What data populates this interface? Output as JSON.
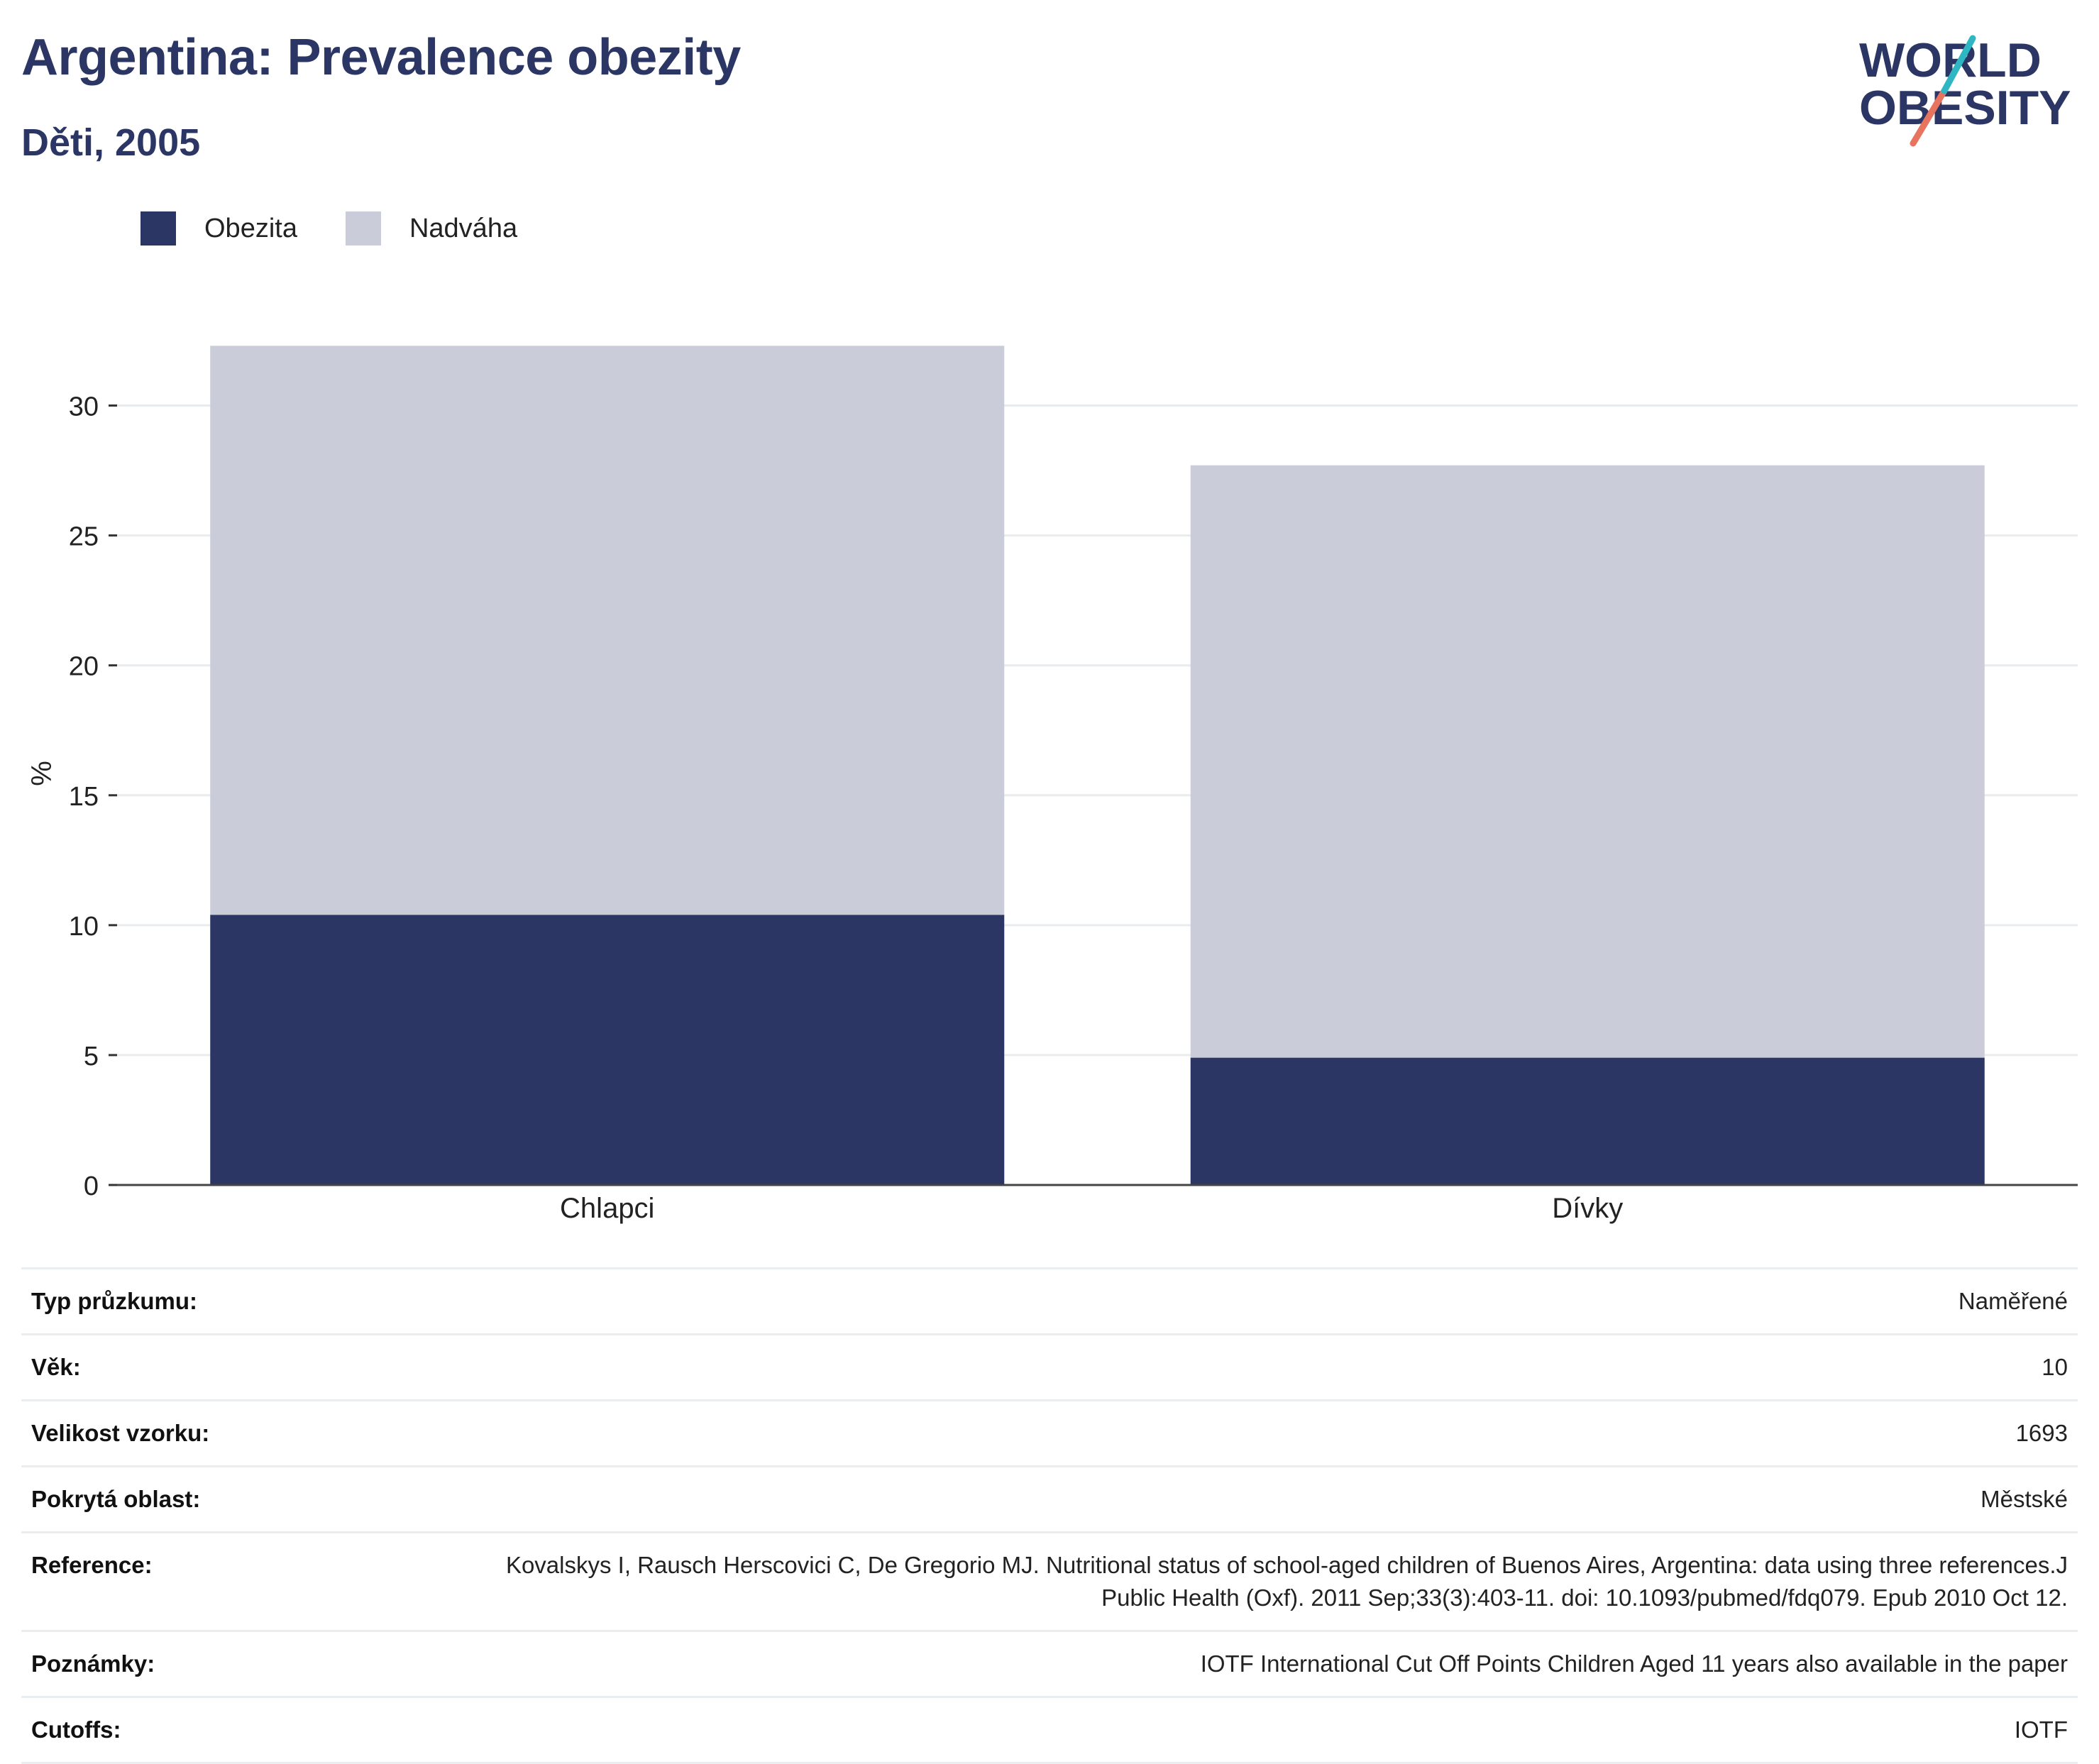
{
  "title": "Argentina: Prevalence obezity",
  "subtitle": "Děti, 2005",
  "logo": {
    "line1": "WORLD",
    "line2": "OBESITY"
  },
  "legend": [
    {
      "label": "Obezita",
      "color": "#2b3664"
    },
    {
      "label": "Nadváha",
      "color": "#cacdd9"
    }
  ],
  "chart_data": {
    "type": "bar",
    "stacked": true,
    "categories": [
      "Chlapci",
      "Dívky"
    ],
    "series": [
      {
        "name": "Obezita",
        "values": [
          10.4,
          4.9
        ],
        "color": "#2b3664"
      },
      {
        "name": "Nadváha",
        "values": [
          21.9,
          22.8
        ],
        "color": "#cacdd9"
      }
    ],
    "ylabel": "%",
    "xlabel": "",
    "ylim": [
      0,
      32.5
    ],
    "yticks": [
      0,
      5,
      10,
      15,
      20,
      25,
      30
    ],
    "grid": true,
    "legend_position": "top-left"
  },
  "info": [
    {
      "label": "Typ průzkumu:",
      "value": "Naměřené"
    },
    {
      "label": "Věk:",
      "value": "10"
    },
    {
      "label": "Velikost vzorku:",
      "value": "1693"
    },
    {
      "label": "Pokrytá oblast:",
      "value": "Městské"
    },
    {
      "label": "Reference:",
      "value": "Kovalskys I, Rausch Herscovici C, De Gregorio MJ. Nutritional status of school-aged children of Buenos Aires, Argentina: data using three references.J Public Health (Oxf). 2011 Sep;33(3):403-11. doi: 10.1093/pubmed/fdq079. Epub 2010 Oct 12."
    },
    {
      "label": "Poznámky:",
      "value": "IOTF International Cut Off Points Children Aged 11 years also available in the paper"
    },
    {
      "label": "Cutoffs:",
      "value": "IOTF"
    }
  ]
}
